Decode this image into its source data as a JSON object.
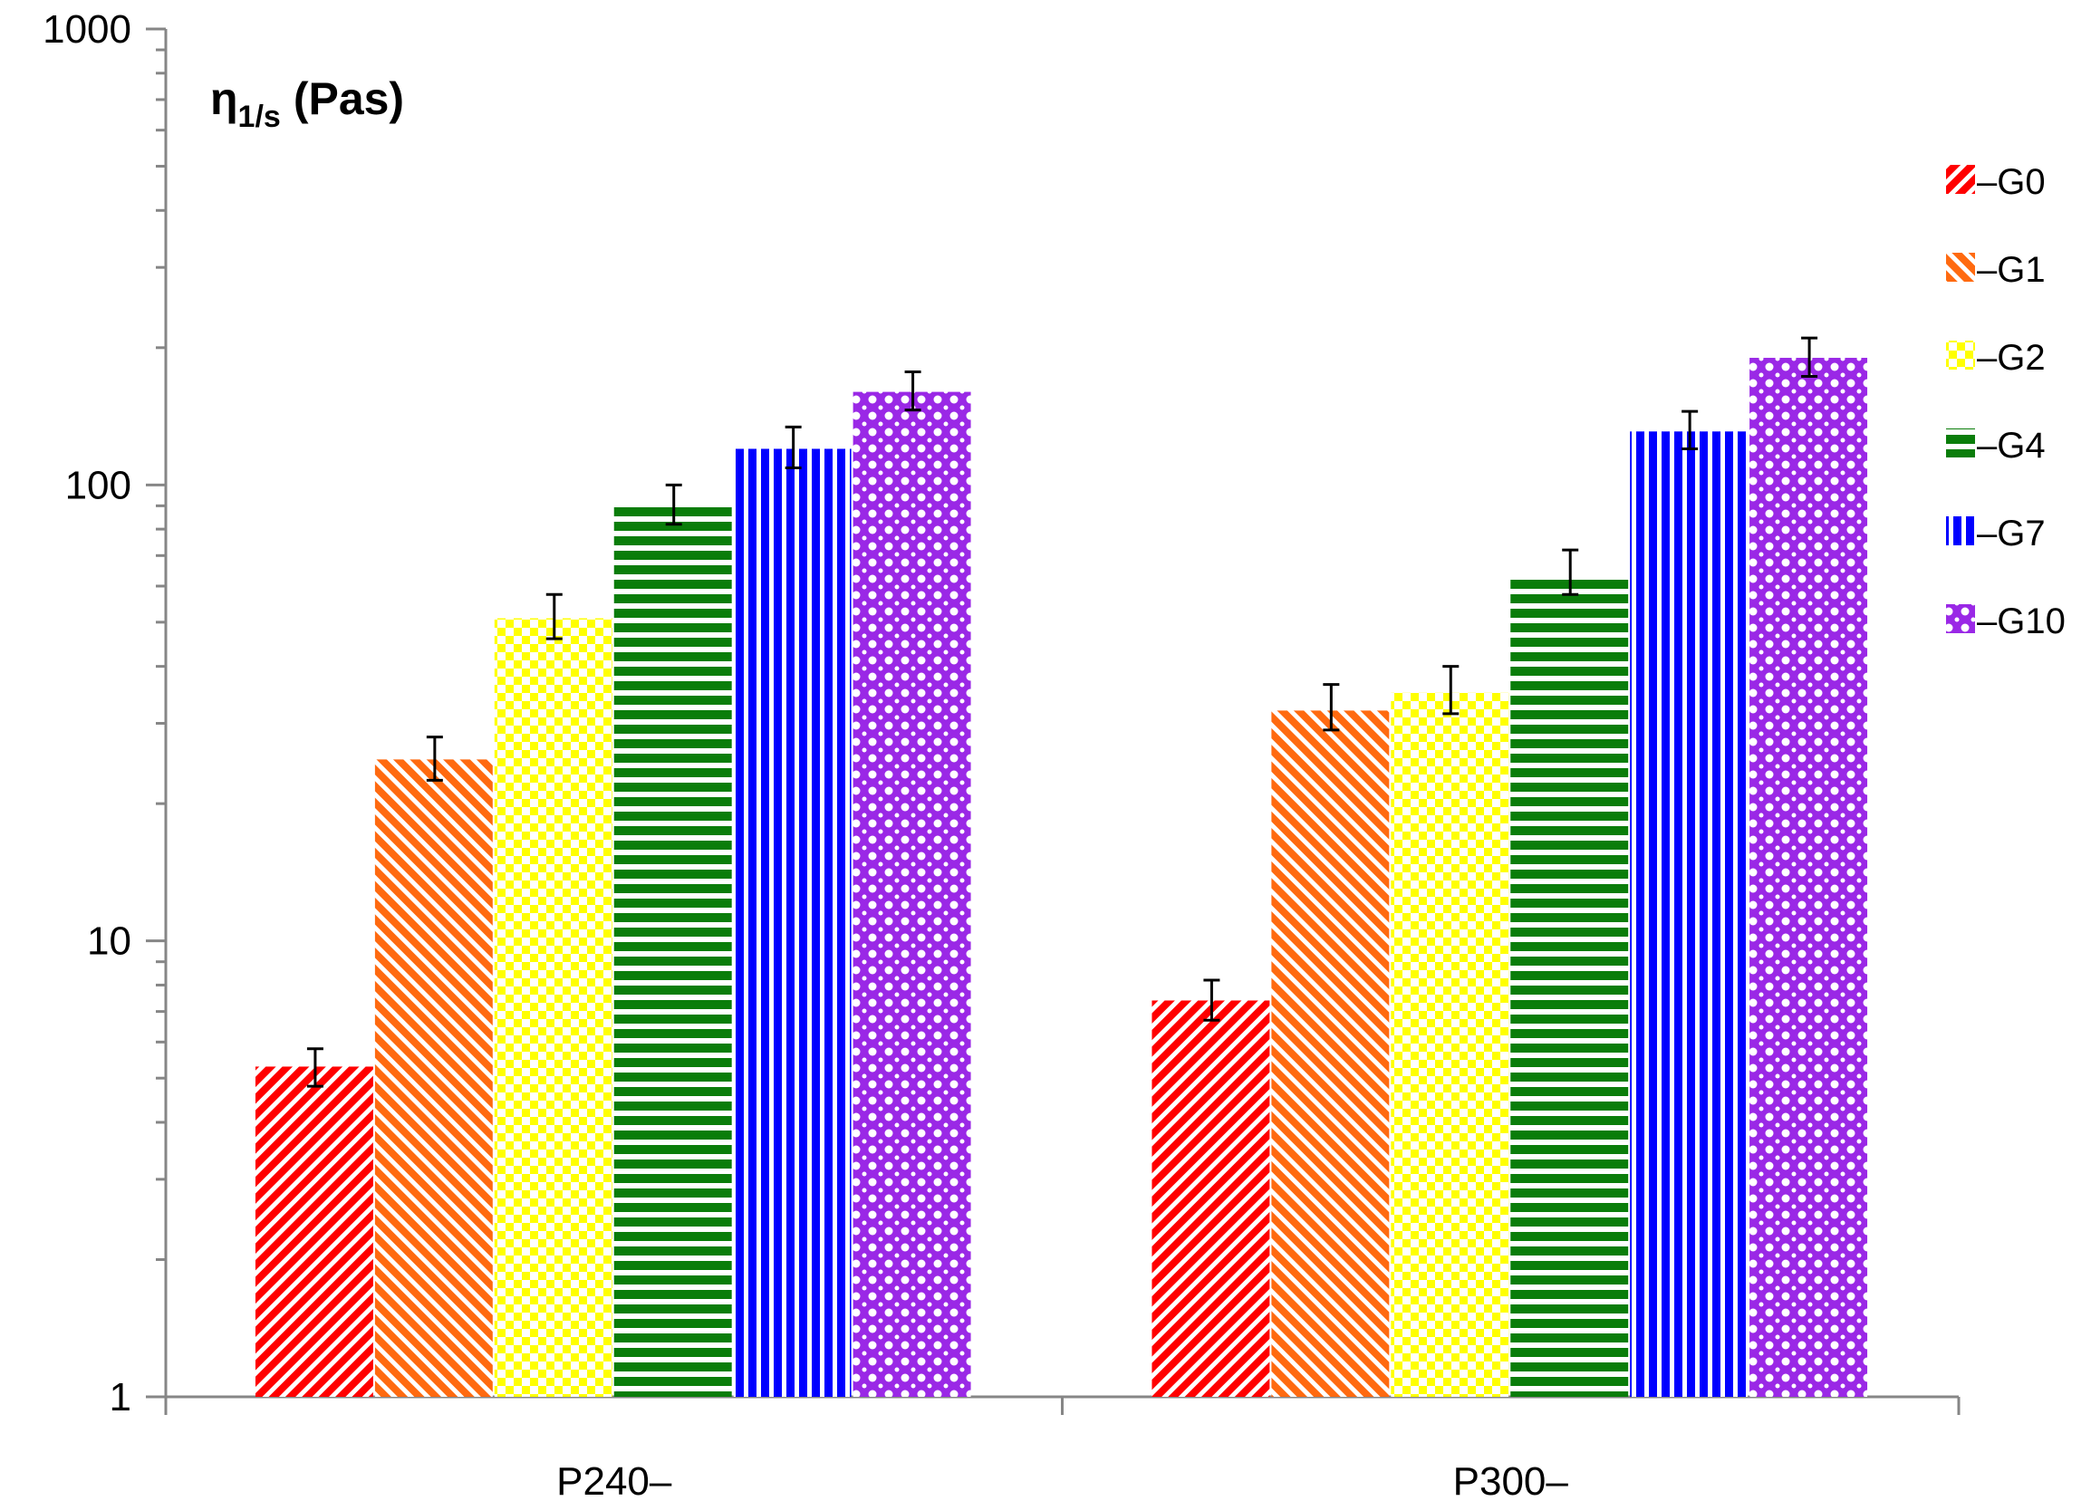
{
  "chart_data": {
    "type": "bar",
    "yscale": "log",
    "ylim": [
      1,
      1000
    ],
    "yticks": [
      1,
      10,
      100,
      1000
    ],
    "ylabel": {
      "main": "η",
      "sub": "1/s",
      "unit": "(Pas)"
    },
    "categories": [
      "P240–",
      "P300–"
    ],
    "series": [
      {
        "name": "–G0",
        "color": "#ff0000",
        "pattern": "diag-down",
        "values": [
          5.3,
          7.4
        ],
        "err_low": [
          4.8,
          6.7
        ],
        "err_high": [
          5.8,
          8.2
        ]
      },
      {
        "name": "–G1",
        "color": "#ff6a10",
        "pattern": "diag-up",
        "values": [
          25,
          32
        ],
        "err_low": [
          22.5,
          29
        ],
        "err_high": [
          28,
          36.5
        ]
      },
      {
        "name": "–G2",
        "color": "#ffff00",
        "pattern": "checker",
        "values": [
          51,
          35
        ],
        "err_low": [
          46,
          31.5
        ],
        "err_high": [
          57.5,
          40
        ]
      },
      {
        "name": "–G4",
        "color": "#0a7d0a",
        "pattern": "horizontal",
        "values": [
          90,
          63
        ],
        "err_low": [
          82,
          57.5
        ],
        "err_high": [
          100,
          72
        ]
      },
      {
        "name": "–G7",
        "color": "#0000ff",
        "pattern": "vertical",
        "values": [
          120,
          131
        ],
        "err_low": [
          109,
          120
        ],
        "err_high": [
          134,
          145
        ]
      },
      {
        "name": "–G10",
        "color": "#9a28e6",
        "pattern": "dots",
        "values": [
          160,
          190
        ],
        "err_low": [
          146,
          173
        ],
        "err_high": [
          177,
          210
        ]
      }
    ],
    "legend_position": "right"
  }
}
